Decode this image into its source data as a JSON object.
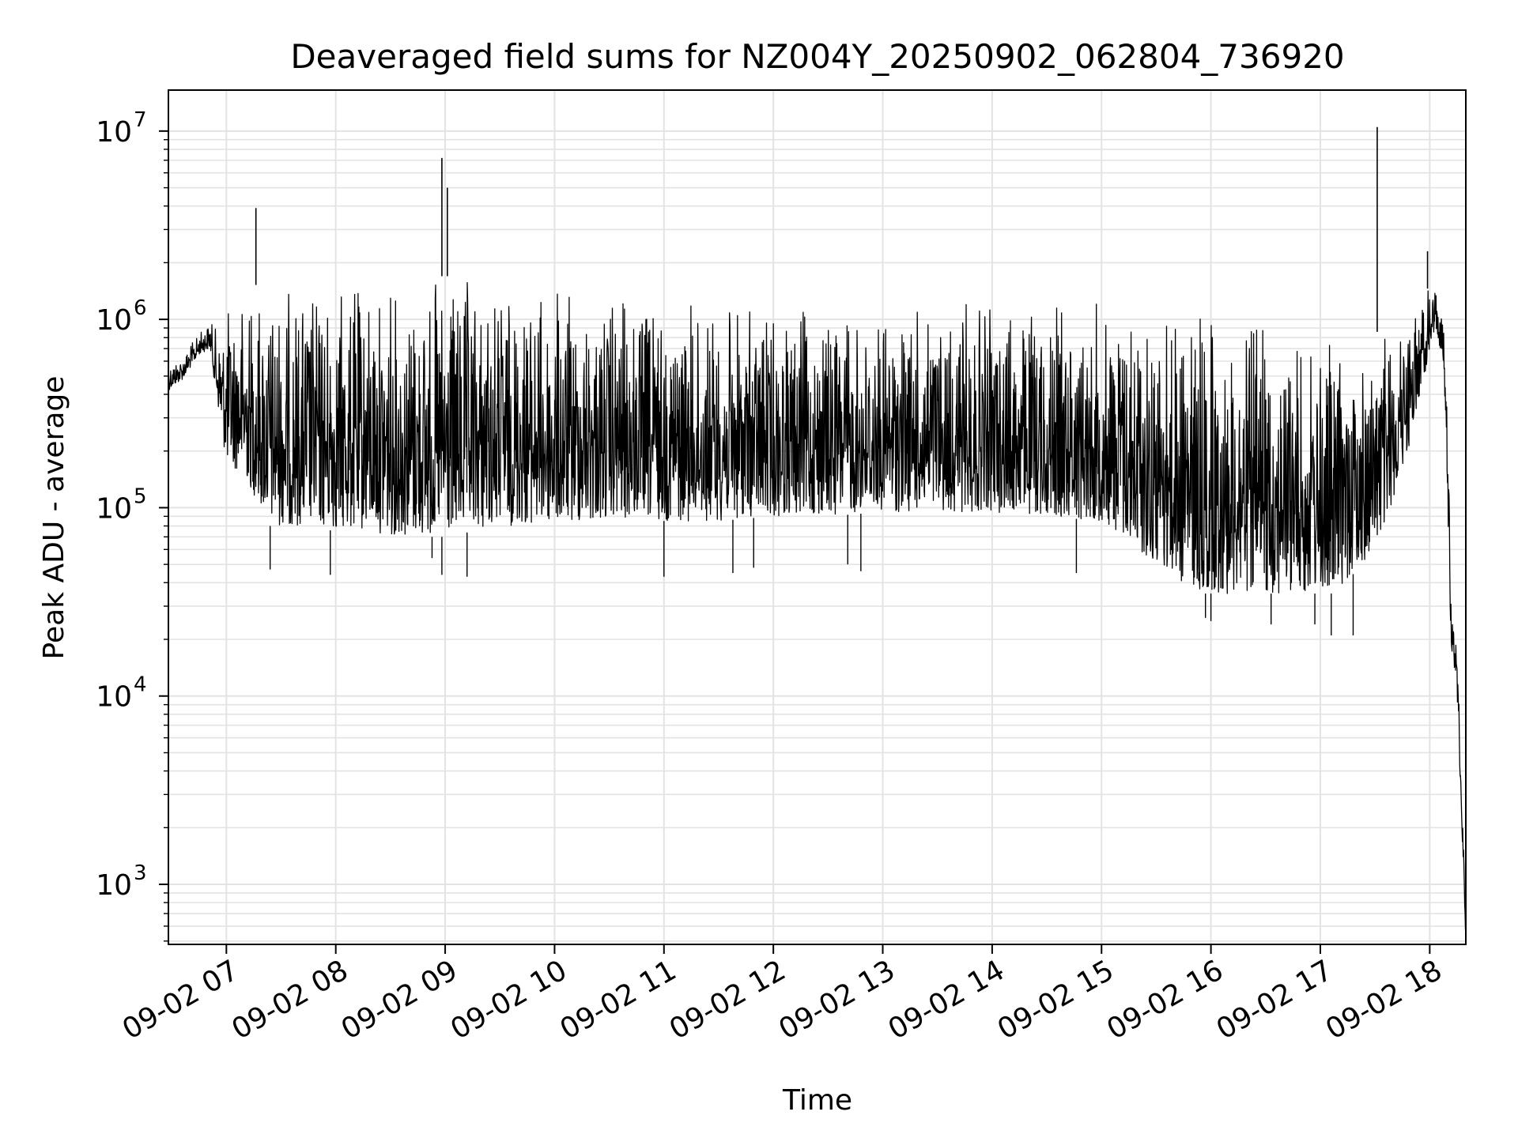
{
  "chart_data": {
    "type": "line",
    "title": "Deaveraged field sums for NZ004Y_20250902_062804_736920",
    "xlabel": "Time",
    "ylabel": "Peak ADU - average",
    "yscale": "log",
    "ylim": [
      480,
      16500000
    ],
    "xlim_hours": [
      6.47,
      18.33
    ],
    "grid": "major and minor, light gray",
    "line_color": "#000000",
    "x_ticks": [
      {
        "label": "09-02 07",
        "hour": 7
      },
      {
        "label": "09-02 08",
        "hour": 8
      },
      {
        "label": "09-02 09",
        "hour": 9
      },
      {
        "label": "09-02 10",
        "hour": 10
      },
      {
        "label": "09-02 11",
        "hour": 11
      },
      {
        "label": "09-02 12",
        "hour": 12
      },
      {
        "label": "09-02 13",
        "hour": 13
      },
      {
        "label": "09-02 14",
        "hour": 14
      },
      {
        "label": "09-02 15",
        "hour": 15
      },
      {
        "label": "09-02 16",
        "hour": 16
      },
      {
        "label": "09-02 17",
        "hour": 17
      },
      {
        "label": "09-02 18",
        "hour": 18
      }
    ],
    "y_ticks": [
      {
        "base": "10",
        "exp": "3",
        "value": 1000
      },
      {
        "base": "10",
        "exp": "4",
        "value": 10000
      },
      {
        "base": "10",
        "exp": "5",
        "value": 100000
      },
      {
        "base": "10",
        "exp": "6",
        "value": 1000000
      },
      {
        "base": "10",
        "exp": "7",
        "value": 10000000
      }
    ],
    "envelope": {
      "hours": [
        6.47,
        6.6,
        6.75,
        6.85,
        6.92,
        7.0,
        7.15,
        7.4,
        7.7,
        8.0,
        8.3,
        8.6,
        9.0,
        9.5,
        10.0,
        10.5,
        11.0,
        11.5,
        12.0,
        12.5,
        13.0,
        13.5,
        14.0,
        14.5,
        15.0,
        15.3,
        15.6,
        15.9,
        16.2,
        16.5,
        16.8,
        17.1,
        17.4,
        17.6,
        17.8,
        17.95,
        18.05,
        18.12,
        18.15,
        18.18,
        18.2,
        18.24,
        18.27,
        18.3,
        18.33
      ],
      "upper": [
        600000,
        650000,
        850000,
        1000000,
        900000,
        1200000,
        1500000,
        1550000,
        1600000,
        1600000,
        1650000,
        1650000,
        1700000,
        1600000,
        1500000,
        1400000,
        1300000,
        1250000,
        1200000,
        1150000,
        1150000,
        1200000,
        1250000,
        1300000,
        1350000,
        1350000,
        1300000,
        1200000,
        1100000,
        1000000,
        900000,
        800000,
        800000,
        900000,
        1100000,
        1400000,
        1600000,
        1200000,
        500000,
        120000,
        30000,
        22000,
        12000,
        3000,
        600
      ],
      "lower": [
        420000,
        480000,
        650000,
        700000,
        350000,
        170000,
        150000,
        80000,
        80000,
        75000,
        75000,
        70000,
        70000,
        80000,
        80000,
        85000,
        85000,
        85000,
        90000,
        90000,
        95000,
        95000,
        95000,
        90000,
        85000,
        60000,
        45000,
        35000,
        35000,
        35000,
        35000,
        35000,
        50000,
        80000,
        200000,
        500000,
        900000,
        600000,
        250000,
        40000,
        16000,
        13000,
        5000,
        1500,
        500
      ]
    },
    "spikes": [
      {
        "hour": 7.27,
        "value": 3900000
      },
      {
        "hour": 8.97,
        "value": 7200000
      },
      {
        "hour": 9.02,
        "value": 5000000
      },
      {
        "hour": 17.52,
        "value": 10500000
      },
      {
        "hour": 17.98,
        "value": 2300000
      }
    ],
    "dips": [
      {
        "hour": 7.4,
        "value": 47000
      },
      {
        "hour": 7.95,
        "value": 44000
      },
      {
        "hour": 8.88,
        "value": 54000
      },
      {
        "hour": 8.97,
        "value": 44000
      },
      {
        "hour": 9.2,
        "value": 43000
      },
      {
        "hour": 11.0,
        "value": 43000
      },
      {
        "hour": 11.63,
        "value": 45000
      },
      {
        "hour": 11.82,
        "value": 48000
      },
      {
        "hour": 12.68,
        "value": 50000
      },
      {
        "hour": 12.8,
        "value": 46000
      },
      {
        "hour": 14.77,
        "value": 45000
      },
      {
        "hour": 15.95,
        "value": 26000
      },
      {
        "hour": 16.0,
        "value": 25000
      },
      {
        "hour": 16.55,
        "value": 24000
      },
      {
        "hour": 16.95,
        "value": 24000
      },
      {
        "hour": 17.1,
        "value": 21000
      },
      {
        "hour": 17.3,
        "value": 21000
      }
    ]
  }
}
